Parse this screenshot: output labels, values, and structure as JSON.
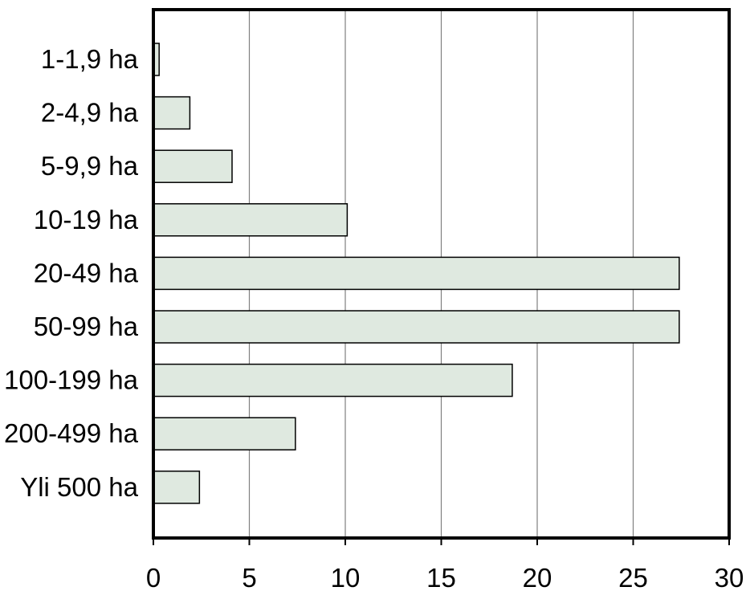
{
  "chart_data": {
    "type": "bar",
    "orientation": "horizontal",
    "title": "",
    "xlabel": "",
    "ylabel": "",
    "categories": [
      "1-1,9 ha",
      "2-4,9 ha",
      "5-9,9 ha",
      "10-19 ha",
      "20-49 ha",
      "50-99 ha",
      "100-199 ha",
      "200-499 ha",
      "Yli 500 ha"
    ],
    "values": [
      0.3,
      1.9,
      4.1,
      10.1,
      27.4,
      27.4,
      18.7,
      7.4,
      2.4
    ],
    "xlim": [
      0,
      30
    ],
    "xticks": [
      "0",
      "5",
      "10",
      "15",
      "20",
      "25",
      "30"
    ],
    "grid": "vertical",
    "legend": "none",
    "colors": {
      "bar_fill": "#dfe9e0",
      "bar_stroke": "#000000",
      "grid": "#808080",
      "axis": "#000000"
    }
  }
}
